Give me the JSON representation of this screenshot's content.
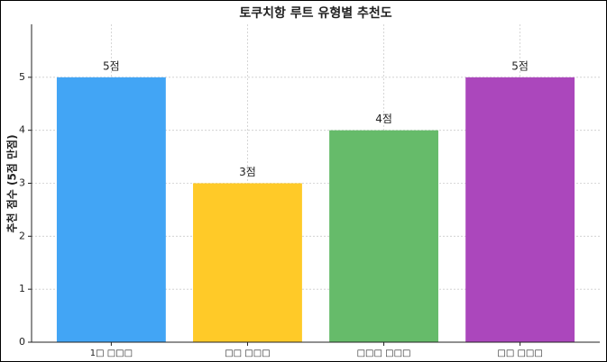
{
  "chart_data": {
    "type": "bar",
    "title": "토쿠치항 루트 유형별 추천도",
    "ylabel": "추천 점수 (5점 만점)",
    "categories": [
      "1□ □□□",
      "□□ □□□",
      "□□□ □□□",
      "□□ □□□"
    ],
    "values": [
      5,
      3,
      4,
      5
    ],
    "value_labels": [
      "5점",
      "3점",
      "4점",
      "5점"
    ],
    "colors": [
      "#42a5f5",
      "#ffca28",
      "#66bb6a",
      "#ab47bc"
    ],
    "ylim": [
      0,
      6
    ],
    "yticks": [
      0,
      1,
      2,
      3,
      4,
      5
    ],
    "grid": true
  }
}
